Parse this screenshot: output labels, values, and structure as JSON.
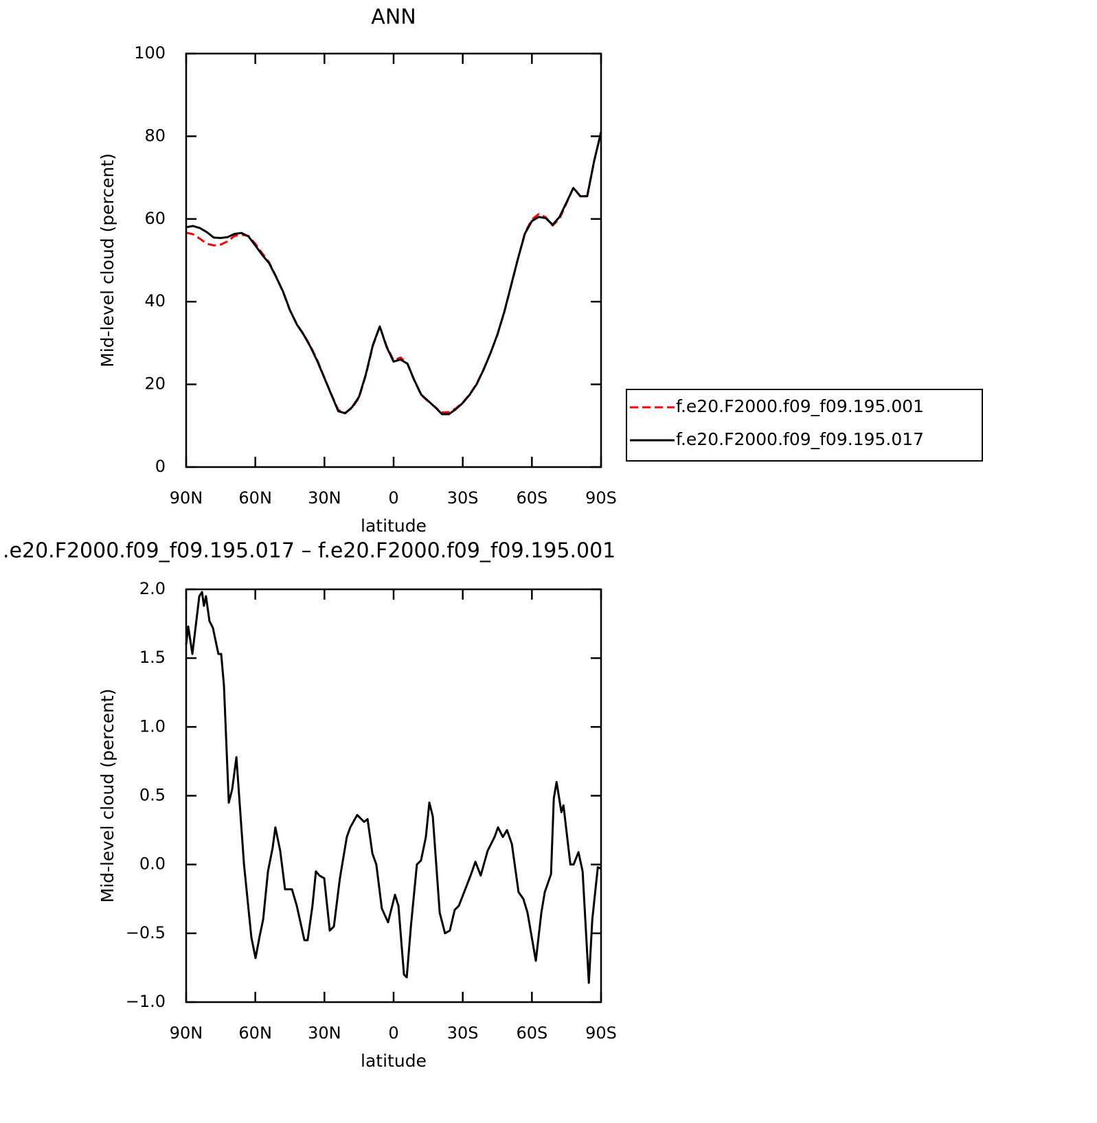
{
  "chart_data": [
    {
      "type": "line",
      "title": "ANN",
      "xlabel": "latitude",
      "ylabel": "Mid-level cloud (percent)",
      "x": [
        90,
        87,
        84,
        81,
        78,
        75,
        72,
        69,
        66,
        63,
        60,
        57,
        54,
        51,
        48,
        45,
        42,
        39,
        36,
        33,
        30,
        27,
        24,
        21,
        18,
        15,
        12,
        9,
        6,
        3,
        0,
        -3,
        -6,
        -9,
        -12,
        -15,
        -18,
        -21,
        -24,
        -27,
        -30,
        -33,
        -36,
        -39,
        -42,
        -45,
        -48,
        -51,
        -54,
        -57,
        -60,
        -63,
        -66,
        -69,
        -72,
        -75,
        -78,
        -81,
        -84,
        -87,
        -90
      ],
      "series": [
        {
          "name": "f.e20.F2000.f09_f09.195.001",
          "color": "#ff0000",
          "line_style": "dashed",
          "values": [
            56.7,
            56.3,
            55.2,
            54.0,
            53.6,
            53.8,
            54.6,
            55.9,
            56.2,
            55.9,
            54.0,
            51.7,
            49.5,
            46.1,
            42.4,
            37.9,
            34.6,
            32.1,
            29.2,
            25.7,
            21.6,
            17.6,
            13.8,
            13.1,
            14.3,
            16.8,
            22.3,
            29.3,
            34.0,
            29.2,
            25.8,
            26.5,
            25.0,
            20.9,
            17.4,
            15.9,
            14.5,
            13.2,
            13.3,
            14.2,
            15.6,
            17.6,
            20.1,
            23.6,
            27.5,
            31.9,
            37.4,
            43.9,
            50.5,
            56.7,
            59.9,
            61.2,
            60.4,
            58.4,
            60.1,
            63.8,
            67.6,
            65.5,
            65.6,
            74.0,
            81.0
          ]
        },
        {
          "name": "f.e20.F2000.f09_f09.195.017",
          "color": "#000000",
          "line_style": "solid",
          "values": [
            58.0,
            58.3,
            57.8,
            56.8,
            55.5,
            55.4,
            55.6,
            56.4,
            56.6,
            55.8,
            53.6,
            51.3,
            49.3,
            46.0,
            42.5,
            38.0,
            34.5,
            32.0,
            29.0,
            25.5,
            21.5,
            17.5,
            13.5,
            13.0,
            14.5,
            17.0,
            22.5,
            29.5,
            34.0,
            29.0,
            25.5,
            26.0,
            25.0,
            21.0,
            17.5,
            16.0,
            14.5,
            12.8,
            12.8,
            14.0,
            15.5,
            17.5,
            20.0,
            23.5,
            27.5,
            32.0,
            37.5,
            44.0,
            50.5,
            56.5,
            59.5,
            60.5,
            60.2,
            58.6,
            60.5,
            64.0,
            67.5,
            65.5,
            65.5,
            74.0,
            81.0
          ]
        }
      ],
      "xlim": [
        90,
        -90
      ],
      "xticks": [
        {
          "value": 90,
          "label": "90N"
        },
        {
          "value": 60,
          "label": "60N"
        },
        {
          "value": 30,
          "label": "30N"
        },
        0,
        {
          "value": -30,
          "label": "30S"
        },
        {
          "value": -60,
          "label": "60S"
        },
        {
          "value": -90,
          "label": "90S"
        }
      ],
      "ylim": [
        0,
        100
      ],
      "yticks": [
        0,
        20,
        40,
        60,
        80,
        100
      ],
      "legend": "right"
    },
    {
      "type": "line",
      "title": ".e20.F2000.f09_f09.195.017 – f.e20.F2000.f09_f09.195.001",
      "xlabel": "latitude",
      "ylabel": "Mid-level cloud (percent)",
      "x": [
        90,
        89.1,
        87.3,
        84.3,
        83.1,
        82.3,
        81.4,
        79.9,
        78.4,
        76,
        74.8,
        73.6,
        71.5,
        70,
        68.2,
        64.9,
        61.7,
        59.9,
        58.1,
        56.6,
        54.5,
        52.5,
        51.3,
        49.2,
        47.1,
        44.1,
        42,
        38.7,
        37.3,
        35.2,
        33.7,
        32.2,
        30.1,
        27.7,
        25.9,
        23.3,
        20.3,
        18.8,
        15.8,
        12.8,
        11.3,
        9.2,
        7.5,
        5.1,
        2.4,
        -0.6,
        -2.1,
        -4.5,
        -5.7,
        -7.5,
        -10.1,
        -11.9,
        -14,
        -15.5,
        -17,
        -20,
        -22.3,
        -24.4,
        -26.5,
        -28.3,
        -33.4,
        -35.5,
        -37.8,
        -40.8,
        -43.8,
        -45.3,
        -47.4,
        -49.2,
        -51.3,
        -54.2,
        -56.3,
        -58.1,
        -61.7,
        -64.1,
        -65.6,
        -68.3,
        -69.5,
        -70.7,
        -72.8,
        -73.7,
        -76.7,
        -78.1,
        -80.2,
        -82,
        -84.7,
        -86.2,
        -88.6,
        -90
      ],
      "series": [
        {
          "color": "#000000",
          "line_style": "solid",
          "values": [
            1.6,
            1.73,
            1.53,
            1.95,
            1.98,
            1.88,
            1.95,
            1.77,
            1.72,
            1.53,
            1.53,
            1.3,
            0.45,
            0.55,
            0.78,
            0.0,
            -0.53,
            -0.68,
            -0.52,
            -0.4,
            -0.05,
            0.12,
            0.27,
            0.1,
            -0.18,
            -0.18,
            -0.3,
            -0.55,
            -0.55,
            -0.3,
            -0.05,
            -0.08,
            -0.1,
            -0.48,
            -0.45,
            -0.1,
            0.2,
            0.27,
            0.36,
            0.31,
            0.33,
            0.08,
            0.0,
            -0.32,
            -0.42,
            -0.22,
            -0.3,
            -0.8,
            -0.82,
            -0.45,
            0.0,
            0.03,
            0.2,
            0.45,
            0.35,
            -0.35,
            -0.5,
            -0.48,
            -0.33,
            -0.3,
            -0.08,
            0.02,
            -0.08,
            0.1,
            0.2,
            0.27,
            0.2,
            0.25,
            0.15,
            -0.2,
            -0.25,
            -0.35,
            -0.7,
            -0.35,
            -0.2,
            -0.07,
            0.48,
            0.6,
            0.38,
            0.43,
            0.0,
            0.0,
            0.09,
            -0.05,
            -0.86,
            -0.4,
            -0.02,
            -0.03
          ]
        }
      ],
      "xlim": [
        90,
        -90
      ],
      "xticks": [
        {
          "value": 90,
          "label": "90N"
        },
        {
          "value": 60,
          "label": "60N"
        },
        {
          "value": 30,
          "label": "30N"
        },
        0,
        {
          "value": -30,
          "label": "30S"
        },
        {
          "value": -60,
          "label": "60S"
        },
        {
          "value": -90,
          "label": "90S"
        }
      ],
      "ylim": [
        -1,
        2
      ],
      "yticks": [
        {
          "value": -1,
          "label": "−1.0"
        },
        {
          "value": -0.5,
          "label": "−0.5"
        },
        {
          "value": 0,
          "label": "0.0"
        },
        0.5,
        {
          "value": 1,
          "label": "1.0"
        },
        1.5,
        {
          "value": 2,
          "label": "2.0"
        }
      ]
    }
  ]
}
